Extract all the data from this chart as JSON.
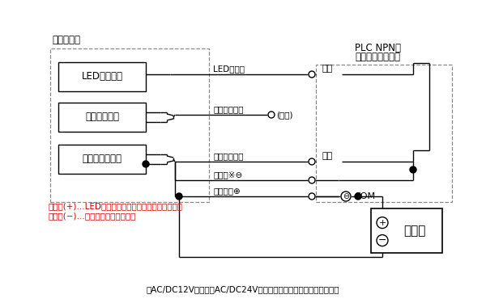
{
  "bg_color": "#ffffff",
  "line_color": "#000000",
  "dashed_color": "#888888",
  "note_color": "#cc0000",
  "left_box_label": "積層信号灯",
  "right_box_label_line1": "PLC NPN型",
  "right_box_label_line2": "トランジスタ出力",
  "unit_labels": [
    "LEDユニット",
    "点滅ユニット",
    "ブザーユニット"
  ],
  "wire_labels": [
    "LED信号線",
    "点滅用共通線",
    "ブザー信号線",
    "電源線※⊖",
    "電源線　⊕"
  ],
  "output_labels": [
    "出力",
    "出力"
  ],
  "com_label": "COM",
  "omit_label": "(省略)",
  "power_label": "電　源",
  "note_line1": "電源線(+)…LEDユニットとブザーユニットの電源線",
  "note_line2": "電源線(−)…点滅ユニットの電源線",
  "bottom_note": "（AC/DC12V、およびAC/DC24Vタイプの点灯・ブザー時の配線例）"
}
